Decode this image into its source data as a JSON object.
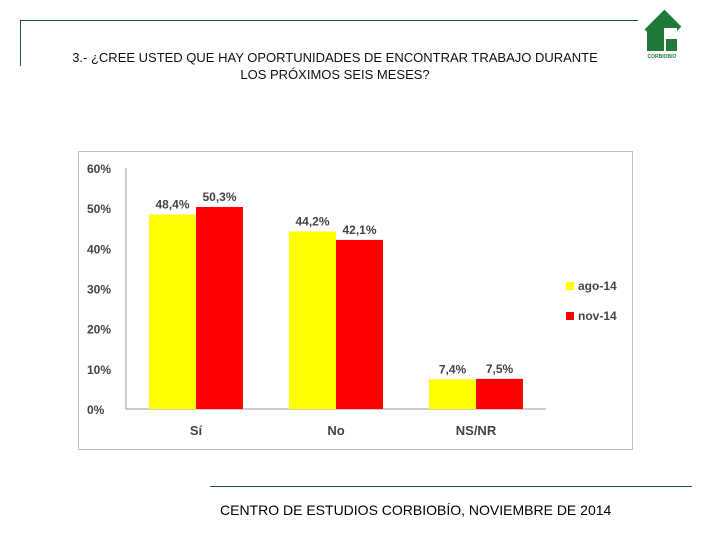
{
  "header": {
    "title_line1": "3.- ¿CREE USTED QUE HAY OPORTUNIDADES DE ENCONTRAR TRABAJO DURANTE",
    "title_line2": "LOS PRÓXIMOS SEIS MESES?",
    "logo_text": "CORBIOBIO",
    "logo_color": "#1f7a3a"
  },
  "chart_data": {
    "type": "bar",
    "categories": [
      "Sí",
      "No",
      "NS/NR"
    ],
    "series": [
      {
        "name": "ago-14",
        "values": [
          48.4,
          44.2,
          7.4
        ],
        "labels": [
          "48,4%",
          "44,2%",
          "7,4%"
        ],
        "color": "#ffff00"
      },
      {
        "name": "nov-14",
        "values": [
          50.3,
          42.1,
          7.5
        ],
        "labels": [
          "50,3%",
          "42,1%",
          "7,5%"
        ],
        "color": "#ff0000"
      }
    ],
    "ylim": [
      0,
      60
    ],
    "yticks": [
      0,
      10,
      20,
      30,
      40,
      50,
      60
    ],
    "ytick_labels": [
      "0%",
      "10%",
      "20%",
      "30%",
      "40%",
      "50%",
      "60%"
    ],
    "legend": "right",
    "grid": false,
    "title": "",
    "xlabel": "",
    "ylabel": ""
  },
  "footer": {
    "text": "CENTRO DE ESTUDIOS CORBIOBÍO, NOVIEMBRE DE 2014"
  }
}
